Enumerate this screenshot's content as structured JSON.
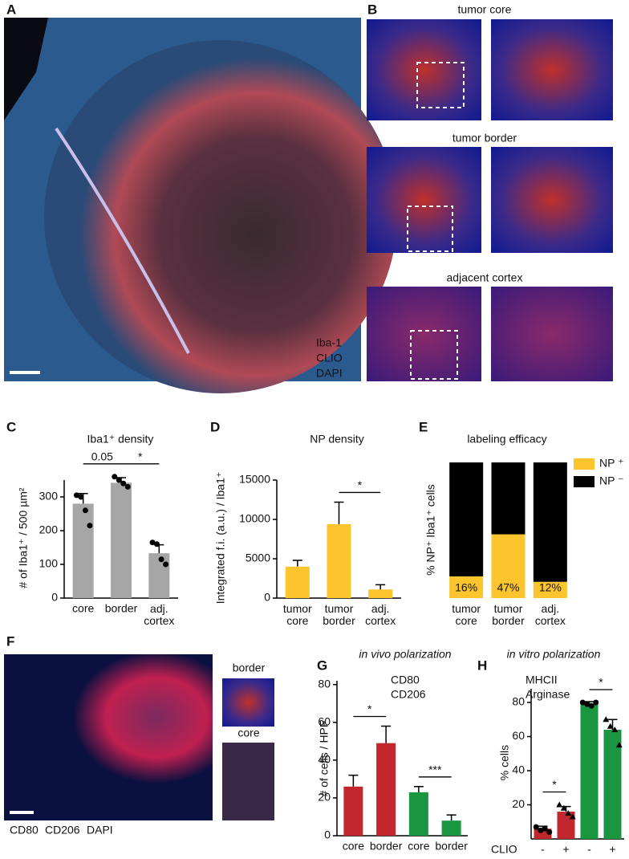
{
  "images": {
    "A": {
      "label": "A",
      "legend": [
        {
          "text": "Iba-1",
          "color": "#d7261e"
        },
        {
          "text": "CLIO",
          "color": "#1d9a3a"
        },
        {
          "text": "DAPI",
          "color": "#1e2fc8"
        }
      ]
    },
    "B": {
      "label": "B",
      "rows": [
        "tumor core",
        "tumor border",
        "adjacent cortex"
      ]
    },
    "F": {
      "label": "F",
      "insets": [
        "border",
        "core"
      ],
      "legend": [
        {
          "text": "CD80",
          "color": "#d7261e"
        },
        {
          "text": "CD206",
          "color": "#1d9a3a"
        },
        {
          "text": "DAPI",
          "color": "#1e2fc8"
        }
      ]
    }
  },
  "chart_data": [
    {
      "type": "bar",
      "label": "C",
      "title": "Iba1⁺ density",
      "ylabel": "# of Iba1⁺ / 500 µm²",
      "categories": [
        "core",
        "border",
        "adj.\ncortex"
      ],
      "series": [
        {
          "color": "#a6a6a6",
          "values": [
            280,
            342,
            133
          ],
          "errors": [
            30,
            15,
            25
          ],
          "points": [
            [
              305,
              300,
              260,
              215
            ],
            [
              360,
              350,
              340,
              330
            ],
            [
              165,
              160,
              115,
              100
            ]
          ]
        }
      ],
      "markers": [
        "circle",
        "circle",
        "circle"
      ],
      "ylim": [
        0,
        350
      ],
      "yticks": [
        0,
        100,
        200,
        300
      ],
      "annotations": [
        {
          "text": "0.05",
          "between": [
            0,
            1
          ]
        },
        {
          "text": "*",
          "between": [
            1,
            2
          ]
        }
      ]
    },
    {
      "type": "bar",
      "label": "D",
      "title": "NP density",
      "ylabel": "Integrated f.i. (a.u.) / Iba1⁺",
      "categories": [
        "tumor\ncore",
        "tumor\nborder",
        "adj.\ncortex"
      ],
      "series": [
        {
          "color": "#fcc52e",
          "values": [
            4000,
            9400,
            1100
          ],
          "errors": [
            800,
            2800,
            600
          ]
        }
      ],
      "ylim": [
        0,
        15000
      ],
      "yticks": [
        0,
        5000,
        10000,
        15000
      ],
      "annotations": [
        {
          "text": "*",
          "between": [
            1,
            2
          ]
        }
      ]
    },
    {
      "type": "bar",
      "label": "E",
      "title": "labeling efficacy",
      "ylabel": "% NP⁺ Iba1⁺ cells",
      "stacked": true,
      "categories": [
        "tumor\ncore",
        "tumor\nborder",
        "adj.\ncortex"
      ],
      "series": [
        {
          "name": "NP ⁺",
          "color": "#fcc52e",
          "values": [
            16,
            47,
            12
          ],
          "value_labels": [
            "16%",
            "47%",
            "12%"
          ]
        },
        {
          "name": "NP ⁻",
          "color": "#000000",
          "values": [
            84,
            53,
            88
          ]
        }
      ],
      "legend": "swatch",
      "ylim": [
        0,
        100
      ]
    },
    {
      "type": "bar",
      "label": "G",
      "title": "in vivo polarization",
      "ylabel": "# of cells / HPF",
      "categories": [
        "core",
        "border",
        "core",
        "border"
      ],
      "series": [
        {
          "name": "CD80",
          "color": "#c1272d",
          "values": [
            26,
            49,
            null,
            null
          ],
          "errors": [
            6,
            9,
            null,
            null
          ]
        },
        {
          "name": "CD206",
          "color": "#1a9641",
          "values": [
            null,
            null,
            23,
            8
          ],
          "errors": [
            null,
            null,
            3,
            3
          ]
        }
      ],
      "legend": "text",
      "ylim": [
        0,
        82
      ],
      "yticks": [
        0,
        20,
        40,
        60,
        80
      ],
      "annotations": [
        {
          "text": "*",
          "between": [
            0,
            1
          ]
        },
        {
          "text": "***",
          "between": [
            2,
            3
          ]
        }
      ]
    },
    {
      "type": "bar",
      "label": "H",
      "title": "in vitro polarization",
      "ylabel": "% cells",
      "xlabel": "CLIO",
      "categories": [
        "-",
        "+",
        "-",
        "+"
      ],
      "series": [
        {
          "name": "MHCII",
          "color": "#c1272d",
          "values": [
            6,
            16,
            null,
            null
          ],
          "errors": [
            1.5,
            3,
            null,
            null
          ],
          "points": [
            [
              7,
              5,
              6,
              4
            ],
            [
              20,
              18,
              15,
              13
            ],
            null,
            null
          ]
        },
        {
          "name": "Arginase",
          "color": "#1a9641",
          "values": [
            null,
            null,
            79,
            64
          ],
          "errors": [
            null,
            null,
            1.5,
            6
          ],
          "points": [
            null,
            null,
            [
              80,
              79,
              78,
              80
            ],
            [
              70,
              66,
              64,
              55
            ]
          ]
        }
      ],
      "markers": [
        "circle",
        "triangle",
        "circle",
        "triangle"
      ],
      "legend": "text",
      "ylim": [
        0,
        88
      ],
      "yticks": [
        20,
        40,
        60,
        80
      ],
      "annotations": [
        {
          "text": "*",
          "between": [
            0,
            1
          ]
        },
        {
          "text": "*",
          "between": [
            2,
            3
          ]
        }
      ]
    }
  ]
}
